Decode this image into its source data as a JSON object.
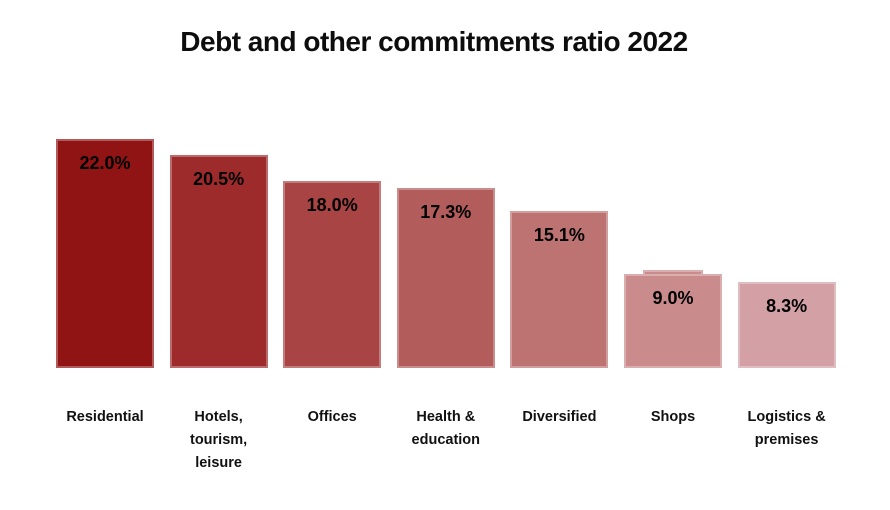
{
  "title": "Debt and other commitments ratio 2022",
  "chart_data": {
    "type": "bar",
    "title": "Debt and other commitments ratio 2022",
    "categories": [
      "Residential",
      "Hotels, tourism, leisure",
      "Offices",
      "Health & education",
      "Diversified",
      "Shops",
      "Logistics & premises"
    ],
    "category_label_lines": [
      [
        "Residential"
      ],
      [
        "Hotels,",
        "tourism,",
        "leisure"
      ],
      [
        "Offices"
      ],
      [
        "Health &",
        "education"
      ],
      [
        "Diversified"
      ],
      [
        "Shops"
      ],
      [
        "Logistics &",
        "premises"
      ]
    ],
    "values": [
      22.0,
      20.5,
      18.0,
      17.3,
      15.1,
      9.0,
      8.3
    ],
    "value_labels": [
      "22.0%",
      "20.5%",
      "18.0%",
      "17.3%",
      "15.1%",
      "9.0%",
      "8.3%"
    ],
    "bar_colors": [
      "#911414",
      "#9E2B2B",
      "#A84444",
      "#B25C5C",
      "#BE7373",
      "#CA8B8D",
      "#D3A1A5"
    ],
    "bar_border_color": "rgba(255,255,255,0.30)",
    "label_color": "#000000",
    "title_color": "#0d0d0d",
    "xlabel": "",
    "ylabel": "",
    "ylim": [
      0,
      23
    ],
    "grid": false,
    "legend": false,
    "value_suffix": "%",
    "shops_cap": {
      "category": "Shops",
      "category_index": 5,
      "width": 60,
      "rise": 4
    }
  }
}
